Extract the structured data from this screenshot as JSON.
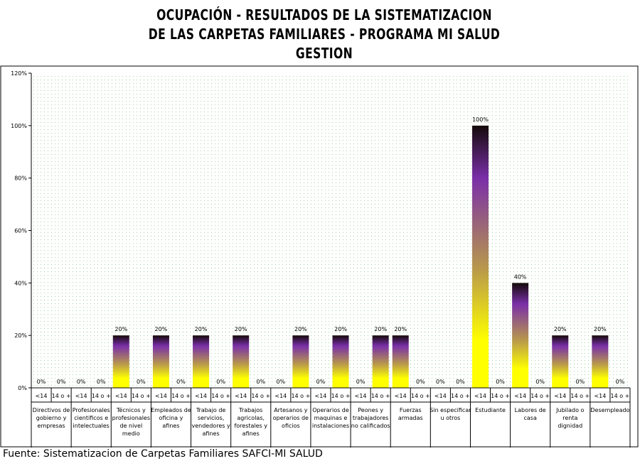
{
  "title_lines": [
    "OCUPACIÓN - RESULTADOS DE LA SISTEMATIZACION",
    "DE LAS CARPETAS FAMILIARES - PROGRAMA MI SALUD",
    "GESTION"
  ],
  "source": "Fuente: Sistematizacion de Carpetas Familiares SAFCI-MI SALUD",
  "colors": {
    "bar_top": "#140a0a",
    "bar_mid": "#7a2fa8",
    "bar_mid2": "#b99a4a",
    "bar_bottom": "#ffff00",
    "plot_dots": "#9ad49a"
  },
  "chart_data": {
    "type": "bar",
    "ylim": [
      0,
      120
    ],
    "yticks": [
      0,
      20,
      40,
      60,
      80,
      100,
      120
    ],
    "ytick_labels": [
      "0%",
      "20%",
      "40%",
      "60%",
      "80%",
      "100%",
      "120%"
    ],
    "grid": false,
    "legend": "none",
    "groups": [
      {
        "label": [
          "Directivos de",
          "gobierno y",
          "empresas"
        ],
        "sub": [
          "<14",
          "14 o +"
        ],
        "values": [
          0,
          0
        ],
        "labels": [
          "0%",
          "0%"
        ]
      },
      {
        "label": [
          "Profesionales",
          "cientificos e",
          "intelectuales"
        ],
        "sub": [
          "<14",
          "14 o +"
        ],
        "values": [
          0,
          0
        ],
        "labels": [
          "0%",
          "0%"
        ]
      },
      {
        "label": [
          "Técnicos y",
          "profesionales",
          "de nivel",
          "medio"
        ],
        "sub": [
          "<14",
          "14 o +"
        ],
        "values": [
          20,
          0
        ],
        "labels": [
          "20%",
          "0%"
        ]
      },
      {
        "label": [
          "Empleados de",
          "oficina y",
          "afines"
        ],
        "sub": [
          "<14",
          "14 o +"
        ],
        "values": [
          20,
          0
        ],
        "labels": [
          "20%",
          "0%"
        ]
      },
      {
        "label": [
          "Trabajo de",
          "servicios,",
          "vendedores y",
          "afines"
        ],
        "sub": [
          "<14",
          "14 o +"
        ],
        "values": [
          20,
          0
        ],
        "labels": [
          "20%",
          "0%"
        ]
      },
      {
        "label": [
          "Trabajos",
          "agricolas,",
          "forestales y",
          "afines"
        ],
        "sub": [
          "<14",
          "14 o +"
        ],
        "values": [
          20,
          0
        ],
        "labels": [
          "20%",
          "0%"
        ]
      },
      {
        "label": [
          "Artesanos y",
          "operarios de",
          "oficios"
        ],
        "sub": [
          "<14",
          "14 o +"
        ],
        "values": [
          0,
          20
        ],
        "labels": [
          "0%",
          "20%"
        ]
      },
      {
        "label": [
          "Operarios de",
          "maquinas e",
          "instalaciones"
        ],
        "sub": [
          "<14",
          "14 o +"
        ],
        "values": [
          0,
          20
        ],
        "labels": [
          "0%",
          "20%"
        ]
      },
      {
        "label": [
          "Peones y",
          "trabajadores",
          "no calificados"
        ],
        "sub": [
          "<14",
          "14 o +"
        ],
        "values": [
          0,
          20
        ],
        "labels": [
          "0%",
          "20%"
        ]
      },
      {
        "label": [
          "Fuerzas",
          "armadas"
        ],
        "sub": [
          "<14",
          "14 o +"
        ],
        "values": [
          20,
          0
        ],
        "labels": [
          "20%",
          "0%"
        ]
      },
      {
        "label": [
          "Sin especificar",
          "u otros"
        ],
        "sub": [
          "<14",
          "14 o +"
        ],
        "values": [
          0,
          0
        ],
        "labels": [
          "0%",
          "0%"
        ]
      },
      {
        "label": [
          "Estudiante"
        ],
        "sub": [
          "<14",
          "14 o +"
        ],
        "values": [
          100,
          0
        ],
        "labels": [
          "100%",
          "0%"
        ]
      },
      {
        "label": [
          "Labores de",
          "casa"
        ],
        "sub": [
          "<14",
          "14 o +"
        ],
        "values": [
          40,
          0
        ],
        "labels": [
          "40%",
          "0%"
        ]
      },
      {
        "label": [
          "Jubilado o",
          "renta",
          "dignidad"
        ],
        "sub": [
          "<14",
          "14 o +"
        ],
        "values": [
          20,
          0
        ],
        "labels": [
          "20%",
          "0%"
        ]
      },
      {
        "label": [
          "Desempleado"
        ],
        "sub": [
          "<14",
          "14 o +"
        ],
        "values": [
          20,
          0
        ],
        "labels": [
          "20%",
          "0%"
        ]
      }
    ]
  }
}
